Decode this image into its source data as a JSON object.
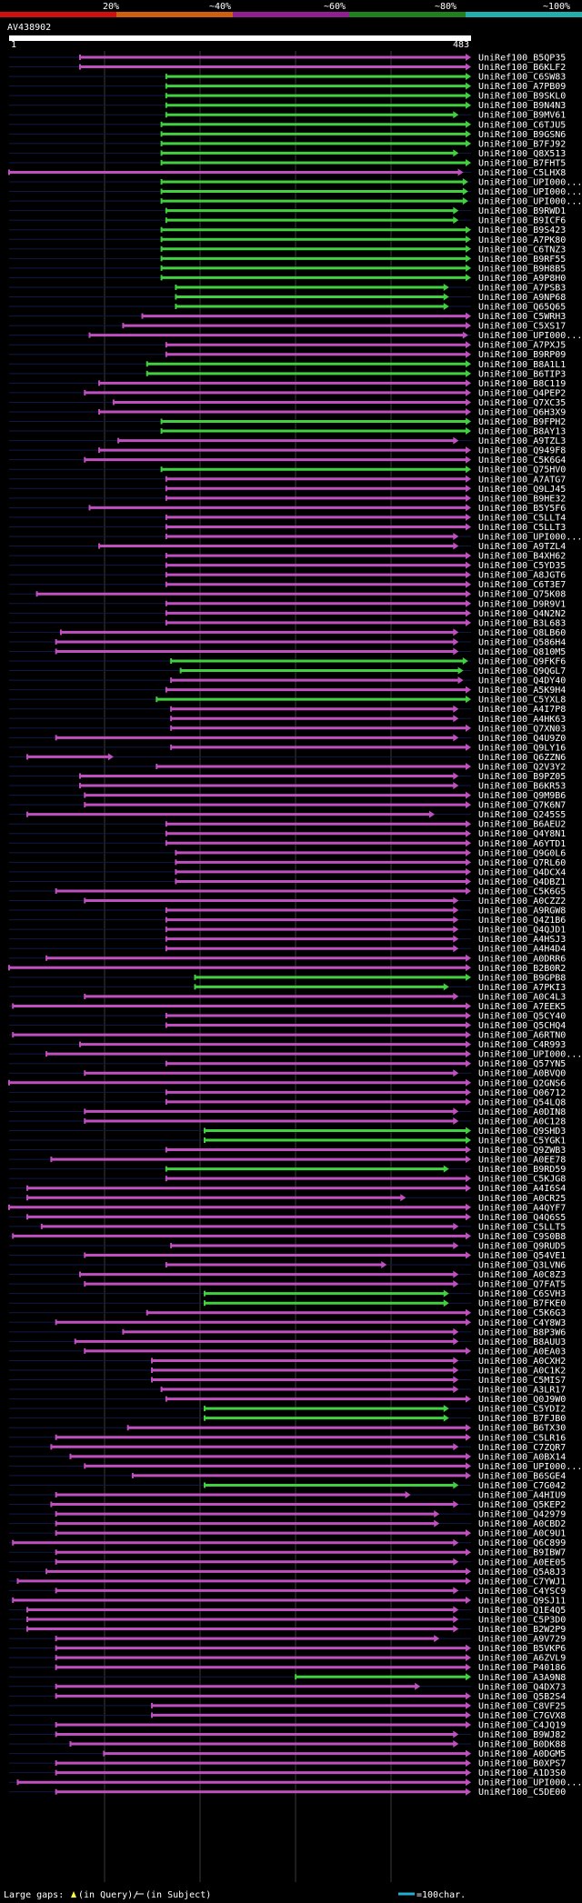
{
  "header": {
    "scale_labels": [
      "20%",
      "~40%",
      "~60%",
      "~80%",
      "~100%"
    ],
    "scale_colors": [
      "#d01010",
      "#d06010",
      "#902090",
      "#208020",
      "#20b0b0"
    ],
    "query_id": "AV438902",
    "ruler_start": "1",
    "ruler_end": "483"
  },
  "footer": {
    "legend_gaps_prefix": "Large gaps:",
    "legend_gaps_query": "(in Query)/",
    "legend_gaps_subject": "(in Subject)",
    "legend_scale": "=100char."
  },
  "colors": {
    "high": "#40d040",
    "mid": "#c050c0",
    "low": "#d03030",
    "gap": "#ffff40"
  },
  "chart_data": {
    "type": "table",
    "query_length": 483,
    "columns": [
      "subject",
      "query_start",
      "query_end",
      "identity_class"
    ],
    "rows": [
      [
        "UniRef100_B5QP35",
        75,
        483,
        "mid"
      ],
      [
        "UniRef100_B6KLF2",
        75,
        483,
        "mid"
      ],
      [
        "UniRef100_C6SW83",
        165,
        483,
        "high"
      ],
      [
        "UniRef100_A7PB09",
        165,
        483,
        "high"
      ],
      [
        "UniRef100_B9SKL0",
        165,
        483,
        "high"
      ],
      [
        "UniRef100_B9N4N3",
        165,
        483,
        "high"
      ],
      [
        "UniRef100_B9MV61",
        165,
        470,
        "high"
      ],
      [
        "UniRef100_C6TJU5",
        160,
        483,
        "high"
      ],
      [
        "UniRef100_B9GSN6",
        160,
        483,
        "high"
      ],
      [
        "UniRef100_B7FJ92",
        160,
        483,
        "high"
      ],
      [
        "UniRef100_Q8X513",
        160,
        470,
        "high"
      ],
      [
        "UniRef100_B7FHT5",
        160,
        483,
        "high"
      ],
      [
        "UniRef100_C5LHX8",
        1,
        475,
        "mid"
      ],
      [
        "UniRef100_UPI000...",
        160,
        480,
        "high"
      ],
      [
        "UniRef100_UPI000...",
        160,
        480,
        "high"
      ],
      [
        "UniRef100_UPI000...",
        160,
        480,
        "high"
      ],
      [
        "UniRef100_B9RWD1",
        165,
        470,
        "high"
      ],
      [
        "UniRef100_B9ICF6",
        165,
        470,
        "high"
      ],
      [
        "UniRef100_B9S423",
        160,
        483,
        "high"
      ],
      [
        "UniRef100_A7PK80",
        160,
        483,
        "high"
      ],
      [
        "UniRef100_C6TNZ3",
        160,
        483,
        "high"
      ],
      [
        "UniRef100_B9RF55",
        160,
        483,
        "high"
      ],
      [
        "UniRef100_B9H8B5",
        160,
        483,
        "high"
      ],
      [
        "UniRef100_A9P8H0",
        160,
        483,
        "high"
      ],
      [
        "UniRef100_A7PSB3",
        175,
        460,
        "high"
      ],
      [
        "UniRef100_A9NP68",
        175,
        460,
        "high"
      ],
      [
        "UniRef100_Q65Q65",
        175,
        460,
        "high"
      ],
      [
        "UniRef100_C5WRH3",
        140,
        483,
        "mid"
      ],
      [
        "UniRef100_C5XS17",
        120,
        483,
        "mid"
      ],
      [
        "UniRef100_UPI000...",
        85,
        480,
        "mid"
      ],
      [
        "UniRef100_A7PXJ5",
        165,
        483,
        "mid"
      ],
      [
        "UniRef100_B9RP09",
        165,
        483,
        "mid"
      ],
      [
        "UniRef100_B8A1L1",
        145,
        483,
        "high"
      ],
      [
        "UniRef100_B6TIP3",
        145,
        483,
        "high"
      ],
      [
        "UniRef100_B8C119",
        95,
        483,
        "mid"
      ],
      [
        "UniRef100_Q4PEP2",
        80,
        483,
        "mid"
      ],
      [
        "UniRef100_Q7XC35",
        110,
        483,
        "mid"
      ],
      [
        "UniRef100_Q6H3X9",
        95,
        483,
        "mid"
      ],
      [
        "UniRef100_B9FPH2",
        160,
        483,
        "high"
      ],
      [
        "UniRef100_B8AY13",
        160,
        483,
        "high"
      ],
      [
        "UniRef100_A9TZL3",
        115,
        470,
        "mid"
      ],
      [
        "UniRef100_Q949F8",
        95,
        483,
        "mid"
      ],
      [
        "UniRef100_C5K6G4",
        80,
        483,
        "mid"
      ],
      [
        "UniRef100_Q75HV0",
        160,
        483,
        "high"
      ],
      [
        "UniRef100_A7ATG7",
        165,
        483,
        "mid"
      ],
      [
        "UniRef100_Q9LJ45",
        165,
        483,
        "mid"
      ],
      [
        "UniRef100_B9HE32",
        165,
        483,
        "mid"
      ],
      [
        "UniRef100_B5Y5F6",
        85,
        483,
        "mid"
      ],
      [
        "UniRef100_C5LLT4",
        165,
        483,
        "mid"
      ],
      [
        "UniRef100_C5LLT3",
        165,
        483,
        "mid"
      ],
      [
        "UniRef100_UPI000...",
        165,
        470,
        "mid"
      ],
      [
        "UniRef100_A9TZL4",
        95,
        470,
        "mid"
      ],
      [
        "UniRef100_B4XH62",
        165,
        483,
        "mid"
      ],
      [
        "UniRef100_C5YD35",
        165,
        483,
        "mid"
      ],
      [
        "UniRef100_A8JGT6",
        165,
        483,
        "mid"
      ],
      [
        "UniRef100_C6T3E7",
        165,
        483,
        "mid"
      ],
      [
        "UniRef100_Q75K08",
        30,
        483,
        "mid"
      ],
      [
        "UniRef100_D9R9V1",
        165,
        483,
        "mid"
      ],
      [
        "UniRef100_Q4N2N2",
        165,
        483,
        "mid"
      ],
      [
        "UniRef100_B3L683",
        165,
        483,
        "mid"
      ],
      [
        "UniRef100_Q8LB60",
        55,
        470,
        "mid"
      ],
      [
        "UniRef100_Q586H4",
        50,
        470,
        "mid"
      ],
      [
        "UniRef100_Q810M5",
        50,
        470,
        "mid"
      ],
      [
        "UniRef100_Q9FKF6",
        170,
        480,
        "high"
      ],
      [
        "UniRef100_Q9QGL7",
        180,
        475,
        "high"
      ],
      [
        "UniRef100_Q4DY40",
        170,
        475,
        "mid"
      ],
      [
        "UniRef100_A5K9H4",
        165,
        483,
        "mid"
      ],
      [
        "UniRef100_C5YXL8",
        155,
        483,
        "high"
      ],
      [
        "UniRef100_A4I7P8",
        170,
        470,
        "mid"
      ],
      [
        "UniRef100_A4HK63",
        170,
        470,
        "mid"
      ],
      [
        "UniRef100_Q7XN03",
        170,
        483,
        "mid"
      ],
      [
        "UniRef100_Q4U9Z0",
        50,
        470,
        "mid"
      ],
      [
        "UniRef100_Q9LY16",
        170,
        483,
        "mid"
      ],
      [
        "UniRef100_Q6ZZN6",
        20,
        110,
        "mid"
      ],
      [
        "UniRef100_Q2V3Y2",
        155,
        483,
        "mid"
      ],
      [
        "UniRef100_B9PZ05",
        75,
        470,
        "mid"
      ],
      [
        "UniRef100_B6KR53",
        75,
        470,
        "mid"
      ],
      [
        "UniRef100_Q9M9B6",
        80,
        483,
        "mid"
      ],
      [
        "UniRef100_Q7K6N7",
        80,
        483,
        "mid"
      ],
      [
        "UniRef100_Q245S5",
        20,
        445,
        "mid"
      ],
      [
        "UniRef100_B6AEU2",
        165,
        483,
        "mid"
      ],
      [
        "UniRef100_Q4Y8N1",
        165,
        483,
        "mid"
      ],
      [
        "UniRef100_A6YTD1",
        165,
        483,
        "mid"
      ],
      [
        "UniRef100_Q9G0L6",
        175,
        483,
        "mid"
      ],
      [
        "UniRef100_Q7RL60",
        175,
        483,
        "mid"
      ],
      [
        "UniRef100_Q4DCX4",
        175,
        483,
        "mid"
      ],
      [
        "UniRef100_Q4DBZ1",
        175,
        483,
        "mid"
      ],
      [
        "UniRef100_C5K6G5",
        50,
        483,
        "mid"
      ],
      [
        "UniRef100_A0CZZ2",
        80,
        470,
        "mid"
      ],
      [
        "UniRef100_A9RGW8",
        165,
        470,
        "mid"
      ],
      [
        "UniRef100_Q4Z1B6",
        165,
        470,
        "mid"
      ],
      [
        "UniRef100_Q4QJD1",
        165,
        470,
        "mid"
      ],
      [
        "UniRef100_A4HSJ3",
        165,
        470,
        "mid"
      ],
      [
        "UniRef100_A4H4D4",
        165,
        470,
        "mid"
      ],
      [
        "UniRef100_A0DRR6",
        40,
        483,
        "mid"
      ],
      [
        "UniRef100_B2B0R2",
        1,
        483,
        "mid"
      ],
      [
        "UniRef100_B9GPB8",
        195,
        483,
        "high"
      ],
      [
        "UniRef100_A7PKI3",
        195,
        460,
        "high"
      ],
      [
        "UniRef100_A0C4L3",
        80,
        470,
        "mid"
      ],
      [
        "UniRef100_A7EEK5",
        5,
        483,
        "mid"
      ],
      [
        "UniRef100_Q5CY40",
        165,
        483,
        "mid"
      ],
      [
        "UniRef100_Q5CHQ4",
        165,
        483,
        "mid"
      ],
      [
        "UniRef100_A6RTN0",
        5,
        483,
        "mid"
      ],
      [
        "UniRef100_C4R993",
        75,
        483,
        "mid"
      ],
      [
        "UniRef100_UPI000...",
        40,
        483,
        "mid"
      ],
      [
        "UniRef100_Q57YN5",
        165,
        483,
        "mid"
      ],
      [
        "UniRef100_A0BVQ0",
        80,
        470,
        "mid"
      ],
      [
        "UniRef100_Q2GNS6",
        1,
        483,
        "mid"
      ],
      [
        "UniRef100_Q06712",
        165,
        483,
        "mid"
      ],
      [
        "UniRef100_Q54LQ8",
        165,
        483,
        "mid"
      ],
      [
        "UniRef100_A0DIN8",
        80,
        470,
        "mid"
      ],
      [
        "UniRef100_A0C128",
        80,
        470,
        "mid"
      ],
      [
        "UniRef100_Q9SHD3",
        205,
        483,
        "high"
      ],
      [
        "UniRef100_C5YGK1",
        205,
        483,
        "high"
      ],
      [
        "UniRef100_Q9ZWB3",
        165,
        483,
        "mid"
      ],
      [
        "UniRef100_A0EE78",
        45,
        483,
        "mid"
      ],
      [
        "UniRef100_B9RD59",
        165,
        460,
        "high"
      ],
      [
        "UniRef100_C5KJG8",
        165,
        483,
        "mid"
      ],
      [
        "UniRef100_A4I6S4",
        20,
        483,
        "mid"
      ],
      [
        "UniRef100_A0CR25",
        20,
        415,
        "mid"
      ],
      [
        "UniRef100_A4QYF7",
        1,
        483,
        "mid"
      ],
      [
        "UniRef100_Q4Q6S5",
        20,
        483,
        "mid"
      ],
      [
        "UniRef100_C5LLT5",
        35,
        470,
        "mid"
      ],
      [
        "UniRef100_C9S0B8",
        5,
        483,
        "mid"
      ],
      [
        "UniRef100_Q9RUD5",
        170,
        470,
        "mid"
      ],
      [
        "UniRef100_Q54VE1",
        80,
        483,
        "mid"
      ],
      [
        "UniRef100_Q3LVN6",
        165,
        395,
        "mid"
      ],
      [
        "UniRef100_A0C8Z3",
        75,
        470,
        "mid"
      ],
      [
        "UniRef100_Q7FAT5",
        80,
        470,
        "mid"
      ],
      [
        "UniRef100_C6SVH3",
        205,
        460,
        "high"
      ],
      [
        "UniRef100_B7FKE0",
        205,
        460,
        "high"
      ],
      [
        "UniRef100_C5K6G3",
        145,
        483,
        "mid"
      ],
      [
        "UniRef100_C4Y8W3",
        50,
        483,
        "mid"
      ],
      [
        "UniRef100_B8P3W6",
        120,
        470,
        "mid"
      ],
      [
        "UniRef100_B8AUU3",
        70,
        470,
        "mid"
      ],
      [
        "UniRef100_A0EA03",
        80,
        483,
        "mid"
      ],
      [
        "UniRef100_A0CXH2",
        150,
        470,
        "mid"
      ],
      [
        "UniRef100_A0C1K2",
        150,
        470,
        "mid"
      ],
      [
        "UniRef100_C5MIS7",
        150,
        470,
        "mid"
      ],
      [
        "UniRef100_A3LR17",
        160,
        470,
        "mid"
      ],
      [
        "UniRef100_Q0J9W0",
        165,
        483,
        "mid"
      ],
      [
        "UniRef100_C5YDI2",
        205,
        460,
        "high"
      ],
      [
        "UniRef100_B7FJB0",
        205,
        460,
        "high"
      ],
      [
        "UniRef100_B6TX30",
        125,
        483,
        "mid"
      ],
      [
        "UniRef100_C5LR16",
        50,
        483,
        "mid"
      ],
      [
        "UniRef100_C7ZQR7",
        45,
        470,
        "mid"
      ],
      [
        "UniRef100_A0BX14",
        65,
        483,
        "mid"
      ],
      [
        "UniRef100_UPI000...",
        80,
        483,
        "mid"
      ],
      [
        "UniRef100_B6SGE4",
        130,
        483,
        "mid"
      ],
      [
        "UniRef100_C7G042",
        205,
        470,
        "high"
      ],
      [
        "UniRef100_A4HIU9",
        50,
        420,
        "mid"
      ],
      [
        "UniRef100_Q5KEP2",
        45,
        470,
        "mid"
      ],
      [
        "UniRef100_Q42979",
        50,
        450,
        "mid"
      ],
      [
        "UniRef100_A0CBD2",
        50,
        450,
        "mid"
      ],
      [
        "UniRef100_A0C9U1",
        50,
        483,
        "mid"
      ],
      [
        "UniRef100_Q6C899",
        5,
        470,
        "mid"
      ],
      [
        "UniRef100_B9IBW7",
        50,
        483,
        "mid"
      ],
      [
        "UniRef100_A0EE05",
        50,
        470,
        "mid"
      ],
      [
        "UniRef100_Q5A8J3",
        40,
        483,
        "mid"
      ],
      [
        "UniRef100_C7YWJ1",
        10,
        483,
        "mid"
      ],
      [
        "UniRef100_C4YSC9",
        50,
        470,
        "mid"
      ],
      [
        "UniRef100_Q9SJ11",
        5,
        483,
        "mid"
      ],
      [
        "UniRef100_Q1E4Q5",
        20,
        470,
        "mid"
      ],
      [
        "UniRef100_C5P3D0",
        20,
        470,
        "mid"
      ],
      [
        "UniRef100_B2W2P9",
        20,
        470,
        "mid"
      ],
      [
        "UniRef100_A9V729",
        50,
        450,
        "mid"
      ],
      [
        "UniRef100_B5VKP6",
        50,
        483,
        "mid"
      ],
      [
        "UniRef100_A6ZVL9",
        50,
        483,
        "mid"
      ],
      [
        "UniRef100_P40186",
        50,
        483,
        "mid"
      ],
      [
        "UniRef100_A3A9N8",
        300,
        483,
        "high"
      ],
      [
        "UniRef100_Q4DX73",
        50,
        430,
        "mid"
      ],
      [
        "UniRef100_Q5B2S4",
        50,
        483,
        "mid"
      ],
      [
        "UniRef100_C8VF25",
        150,
        483,
        "mid"
      ],
      [
        "UniRef100_C7GVX8",
        150,
        483,
        "mid"
      ],
      [
        "UniRef100_C4JQ19",
        50,
        483,
        "mid"
      ],
      [
        "UniRef100_B9WJ82",
        50,
        470,
        "mid"
      ],
      [
        "UniRef100_B0DK88",
        65,
        470,
        "mid"
      ],
      [
        "UniRef100_A0DGM5",
        100,
        483,
        "mid"
      ],
      [
        "UniRef100_B0XPS7",
        50,
        483,
        "mid"
      ],
      [
        "UniRef100_A1D3S0",
        50,
        483,
        "mid"
      ],
      [
        "UniRef100_UPI000...",
        10,
        483,
        "mid"
      ],
      [
        "UniRef100_C5DE00",
        50,
        483,
        "mid"
      ]
    ]
  }
}
